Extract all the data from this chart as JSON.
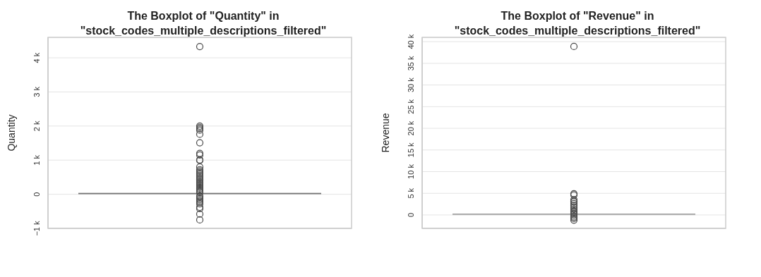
{
  "chart_data": [
    {
      "type": "box",
      "title": "The Boxplot of \"Quantity\" in\n\"stock_codes_multiple_descriptions_filtered\"",
      "ylabel": "Quantity",
      "categories": [
        null
      ],
      "color": "#4a4a4a",
      "boxes": [
        {
          "low": -45,
          "q1": 0,
          "median": 10,
          "q3": 40,
          "high": 90,
          "outliers": [
            4330,
            2000,
            1960,
            1920,
            1880,
            1760,
            1510,
            1200,
            1150,
            1010,
            990,
            800,
            720,
            680,
            640,
            600,
            560,
            520,
            480,
            440,
            400,
            360,
            320,
            280,
            240,
            200,
            160,
            120,
            80,
            50,
            -50,
            -80,
            -120,
            -160,
            -200,
            -240,
            -280,
            -380,
            -420,
            -580,
            -750
          ]
        }
      ],
      "ylim": [
        -1000,
        4600
      ],
      "yticks": [
        {
          "value": -1000,
          "label": "−1 k"
        },
        0,
        {
          "value": 1000,
          "label": "1 k"
        },
        {
          "value": 2000,
          "label": "2 k"
        },
        {
          "value": 3000,
          "label": "3 k"
        },
        {
          "value": 4000,
          "label": "4 k"
        }
      ],
      "grid": "y",
      "tick_labels": "y",
      "marker": "circle"
    },
    {
      "type": "box",
      "title": "The Boxplot of \"Revenue\" in\n\"stock_codes_multiple_descriptions_filtered\"",
      "ylabel": "Revenue",
      "categories": [
        null
      ],
      "color": "#4a4a4a",
      "boxes": [
        {
          "low": -350,
          "q1": -20,
          "median": 60,
          "q3": 220,
          "high": 550,
          "outliers": [
            38900,
            4900,
            4600,
            3500,
            3200,
            3000,
            2600,
            2200,
            1800,
            1400,
            1000,
            700,
            400,
            200,
            -200,
            -500,
            -800,
            -1200
          ]
        }
      ],
      "ylim": [
        -3100,
        41000
      ],
      "yticks": [
        0,
        {
          "value": 5000,
          "label": "5 k"
        },
        {
          "value": 10000,
          "label": "10 k"
        },
        {
          "value": 15000,
          "label": "15 k"
        },
        {
          "value": 20000,
          "label": "20 k"
        },
        {
          "value": 25000,
          "label": "25 k"
        },
        {
          "value": 30000,
          "label": "30 k"
        },
        {
          "value": 35000,
          "label": "35 k"
        },
        {
          "value": 40000,
          "label": "40 k"
        }
      ],
      "grid": "y",
      "tick_labels": "y",
      "marker": "circle"
    }
  ]
}
